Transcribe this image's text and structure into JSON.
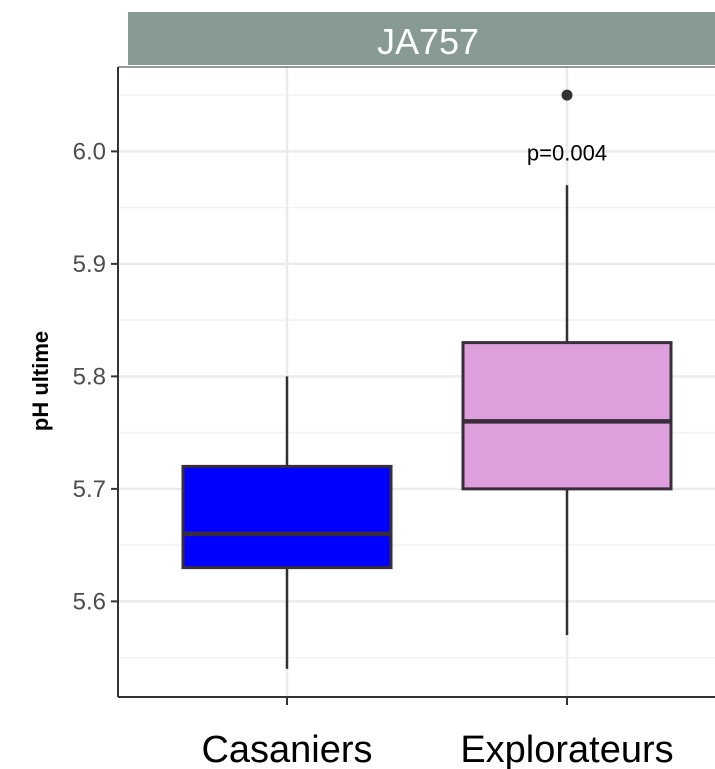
{
  "chart_data": {
    "type": "boxplot",
    "panel_title": "JA757",
    "ylabel": "pH ultime",
    "xlabel": "",
    "ylim": [
      5.515,
      6.075
    ],
    "yticks": [
      5.6,
      5.7,
      5.8,
      5.9,
      6.0
    ],
    "ytick_labels": [
      "5.6",
      "5.7",
      "5.8",
      "5.9",
      "6.0"
    ],
    "grid": true,
    "categories": [
      "Casaniers",
      "Explorateurs"
    ],
    "boxes": [
      {
        "category": "Casaniers",
        "whisker_low": 5.54,
        "q1": 5.63,
        "median": 5.66,
        "q3": 5.72,
        "whisker_high": 5.8,
        "outliers": [],
        "fill": "#0000ff"
      },
      {
        "category": "Explorateurs",
        "whisker_low": 5.57,
        "q1": 5.7,
        "median": 5.76,
        "q3": 5.83,
        "whisker_high": 5.97,
        "outliers": [
          6.05
        ],
        "fill": "#dda0dd"
      }
    ],
    "annotations": [
      {
        "text": "p=0.004",
        "category": "Explorateurs",
        "y": 6.0
      }
    ],
    "colors": {
      "panel_strip": "#879a93",
      "box_border": "#3a2d3a",
      "grid": "#ebebeb"
    }
  }
}
